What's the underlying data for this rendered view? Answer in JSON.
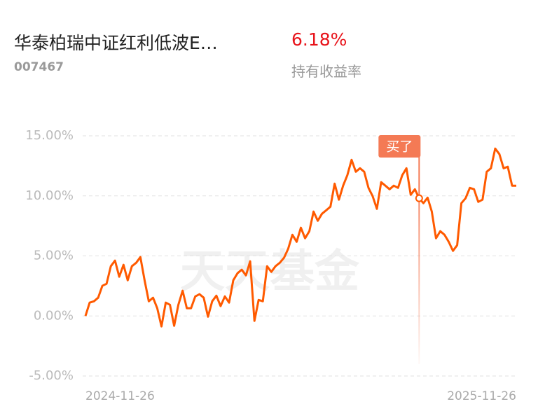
{
  "header": {
    "title": "华泰柏瑞中证红利低波E…",
    "code": "007467",
    "return": "6.18%",
    "return_label": "持有收益率"
  },
  "watermark": "天天基金",
  "chart_data": {
    "type": "line",
    "ylim": [
      -5,
      15
    ],
    "yticks": [
      {
        "value": 15,
        "label": "15.00%"
      },
      {
        "value": 10,
        "label": "10.00%"
      },
      {
        "value": 5,
        "label": "5.00%"
      },
      {
        "value": 0,
        "label": "0.00%"
      },
      {
        "value": -5,
        "label": "-5.00%"
      }
    ],
    "grid": true,
    "categories": [
      "2024-11-26",
      null,
      null,
      null,
      null,
      null,
      null,
      null,
      null,
      null,
      null,
      null,
      null,
      null,
      null,
      null,
      null,
      null,
      null,
      null,
      null,
      null,
      null,
      null,
      null,
      null,
      null,
      null,
      null,
      null,
      null,
      null,
      null,
      null,
      null,
      null,
      null,
      null,
      null,
      null,
      null,
      null,
      null,
      null,
      null,
      null,
      null,
      null,
      null,
      null,
      null,
      null,
      null,
      null,
      null,
      null,
      null,
      null,
      null,
      null,
      null,
      null,
      null,
      null,
      null,
      null,
      null,
      null,
      null,
      null,
      null,
      null,
      null,
      null,
      null,
      null,
      null,
      null,
      null,
      null,
      null,
      null,
      null,
      null,
      null,
      null,
      null,
      null,
      null,
      null,
      null,
      null,
      null,
      null,
      null,
      null,
      null,
      null,
      null,
      null,
      null,
      null,
      "2025-11-26"
    ],
    "series": [
      {
        "color": "#ff5a00",
        "values": [
          0,
          1.11,
          1.22,
          1.52,
          2.51,
          2.68,
          4.14,
          4.61,
          3.27,
          4.26,
          2.97,
          4.14,
          4.43,
          4.9,
          2.97,
          1.22,
          1.52,
          0.64,
          -0.87,
          1.11,
          0.93,
          -0.82,
          0.93,
          2.1,
          0.64,
          0.64,
          1.63,
          1.81,
          1.52,
          -0.06,
          1.22,
          1.69,
          0.82,
          1.63,
          1.11,
          2.97,
          3.56,
          3.85,
          3.38,
          4.55,
          -0.41,
          1.34,
          1.22,
          4.14,
          3.67,
          4.14,
          4.43,
          4.84,
          5.6,
          6.76,
          6.18,
          7.35,
          6.47,
          7.06,
          8.69,
          7.93,
          8.51,
          8.8,
          9.1,
          11.02,
          9.68,
          10.85,
          11.72,
          13,
          12.01,
          12.3,
          12.01,
          10.67,
          9.97,
          8.92,
          11.14,
          10.85,
          10.55,
          10.85,
          10.67,
          11.72,
          12.3,
          10.09,
          10.55,
          9.8,
          9.39,
          9.85,
          8.69,
          6.47,
          7.06,
          6.76,
          6.18,
          5.42,
          5.89,
          9.39,
          9.8,
          10.67,
          10.55,
          9.5,
          9.68,
          12.01,
          12.3,
          13.94,
          13.47,
          12.3,
          12.42,
          10.85,
          10.85
        ]
      },
      {
        "name": "买了",
        "color": "#f47a55",
        "values": [
          null,
          null,
          null,
          null,
          null,
          null,
          null,
          null,
          null,
          null,
          null,
          null,
          null,
          null,
          null,
          null,
          null,
          null,
          null,
          null,
          null,
          null,
          null,
          null,
          null,
          null,
          null,
          null,
          null,
          null,
          null,
          null,
          null,
          null,
          null,
          null,
          null,
          null,
          null,
          null,
          null,
          null,
          null,
          null,
          null,
          null,
          null,
          null,
          null,
          null,
          null,
          null,
          null,
          null,
          null,
          null,
          null,
          null,
          null,
          null,
          null,
          null,
          null,
          null,
          null,
          null,
          null,
          null,
          null,
          null,
          null,
          null,
          null,
          null,
          null,
          null,
          null,
          null,
          null,
          9.8,
          null,
          null,
          null,
          null,
          null,
          null,
          null,
          null,
          null,
          null,
          null,
          null,
          null,
          null,
          null,
          null,
          null,
          null,
          null,
          null,
          null,
          null,
          null
        ]
      }
    ]
  }
}
